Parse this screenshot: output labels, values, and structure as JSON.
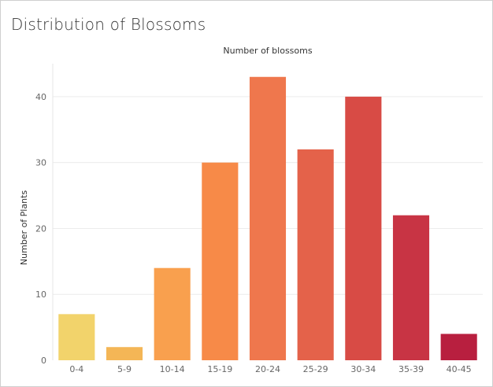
{
  "title": "Distribution of Blossoms",
  "chart_data": {
    "type": "bar",
    "title": "Distribution of Blossoms",
    "xlabel": "Number of blossoms",
    "ylabel": "Number of Plants",
    "categories": [
      "0-4",
      "5-9",
      "10-14",
      "15-19",
      "20-24",
      "25-29",
      "30-34",
      "35-39",
      "40-45"
    ],
    "values": [
      7,
      2,
      14,
      30,
      43,
      32,
      40,
      22,
      4
    ],
    "ylim": [
      0,
      45
    ],
    "yticks": [
      0,
      10,
      20,
      30,
      40
    ],
    "grid": true,
    "legend": "none",
    "bar_colors": [
      "#f2d36b",
      "#f4b656",
      "#f9a04e",
      "#f78a48",
      "#ef774d",
      "#e4624a",
      "#d84b45",
      "#c83444",
      "#b81f3f"
    ]
  }
}
